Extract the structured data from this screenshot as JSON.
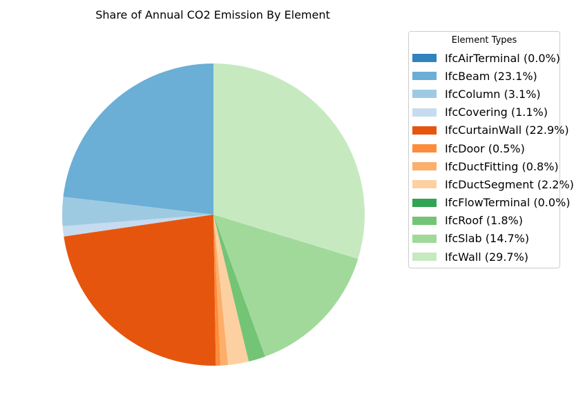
{
  "chart_data": {
    "type": "pie",
    "title": "Share of Annual CO2 Emission By Element",
    "legend_title": "Element Types",
    "legend_placement": "right",
    "start_angle_deg": 90,
    "direction": "counterclockwise",
    "slices": [
      {
        "label": "IfcAirTerminal (0.0%)",
        "value": 0.0,
        "color": "#3182bd"
      },
      {
        "label": "IfcBeam (23.1%)",
        "value": 23.1,
        "color": "#6baed6"
      },
      {
        "label": "IfcColumn (3.1%)",
        "value": 3.1,
        "color": "#9ecae1"
      },
      {
        "label": "IfcCovering (1.1%)",
        "value": 1.1,
        "color": "#c6dbef"
      },
      {
        "label": "IfcCurtainWall (22.9%)",
        "value": 22.9,
        "color": "#e6550d"
      },
      {
        "label": "IfcDoor (0.5%)",
        "value": 0.5,
        "color": "#fd8d3c"
      },
      {
        "label": "IfcDuctFitting (0.8%)",
        "value": 0.8,
        "color": "#fdae6b"
      },
      {
        "label": "IfcDuctSegment (2.2%)",
        "value": 2.2,
        "color": "#fdd0a2"
      },
      {
        "label": "IfcFlowTerminal (0.0%)",
        "value": 0.0,
        "color": "#31a354"
      },
      {
        "label": "IfcRoof (1.8%)",
        "value": 1.8,
        "color": "#74c476"
      },
      {
        "label": "IfcSlab (14.7%)",
        "value": 14.7,
        "color": "#a1d99b"
      },
      {
        "label": "IfcWall (29.7%)",
        "value": 29.7,
        "color": "#c7e9c0"
      }
    ]
  }
}
